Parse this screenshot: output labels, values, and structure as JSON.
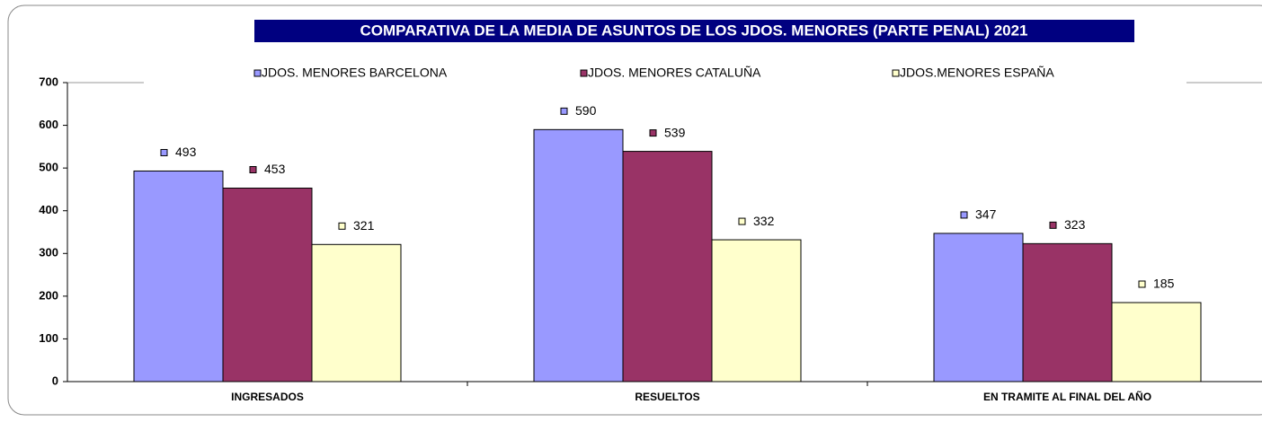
{
  "chart_data": {
    "type": "bar",
    "title": "COMPARATIVA DE LA MEDIA DE ASUNTOS DE LOS JDOS. MENORES (PARTE PENAL)  2021",
    "categories": [
      "INGRESADOS",
      "RESUELTOS",
      "EN TRAMITE AL FINAL DEL AÑO"
    ],
    "series": [
      {
        "name": "JDOS. MENORES BARCELONA",
        "color": "#9999ff",
        "values": [
          493,
          590,
          347
        ]
      },
      {
        "name": "JDOS. MENORES  CATALUÑA",
        "color": "#993366",
        "values": [
          453,
          539,
          323
        ]
      },
      {
        "name": "JDOS.MENORES  ESPAÑA",
        "color": "#ffffcc",
        "values": [
          321,
          332,
          185
        ]
      }
    ],
    "ylim": [
      0,
      700
    ],
    "yticks": [
      0,
      100,
      200,
      300,
      400,
      500,
      600,
      700
    ],
    "grid": false
  }
}
